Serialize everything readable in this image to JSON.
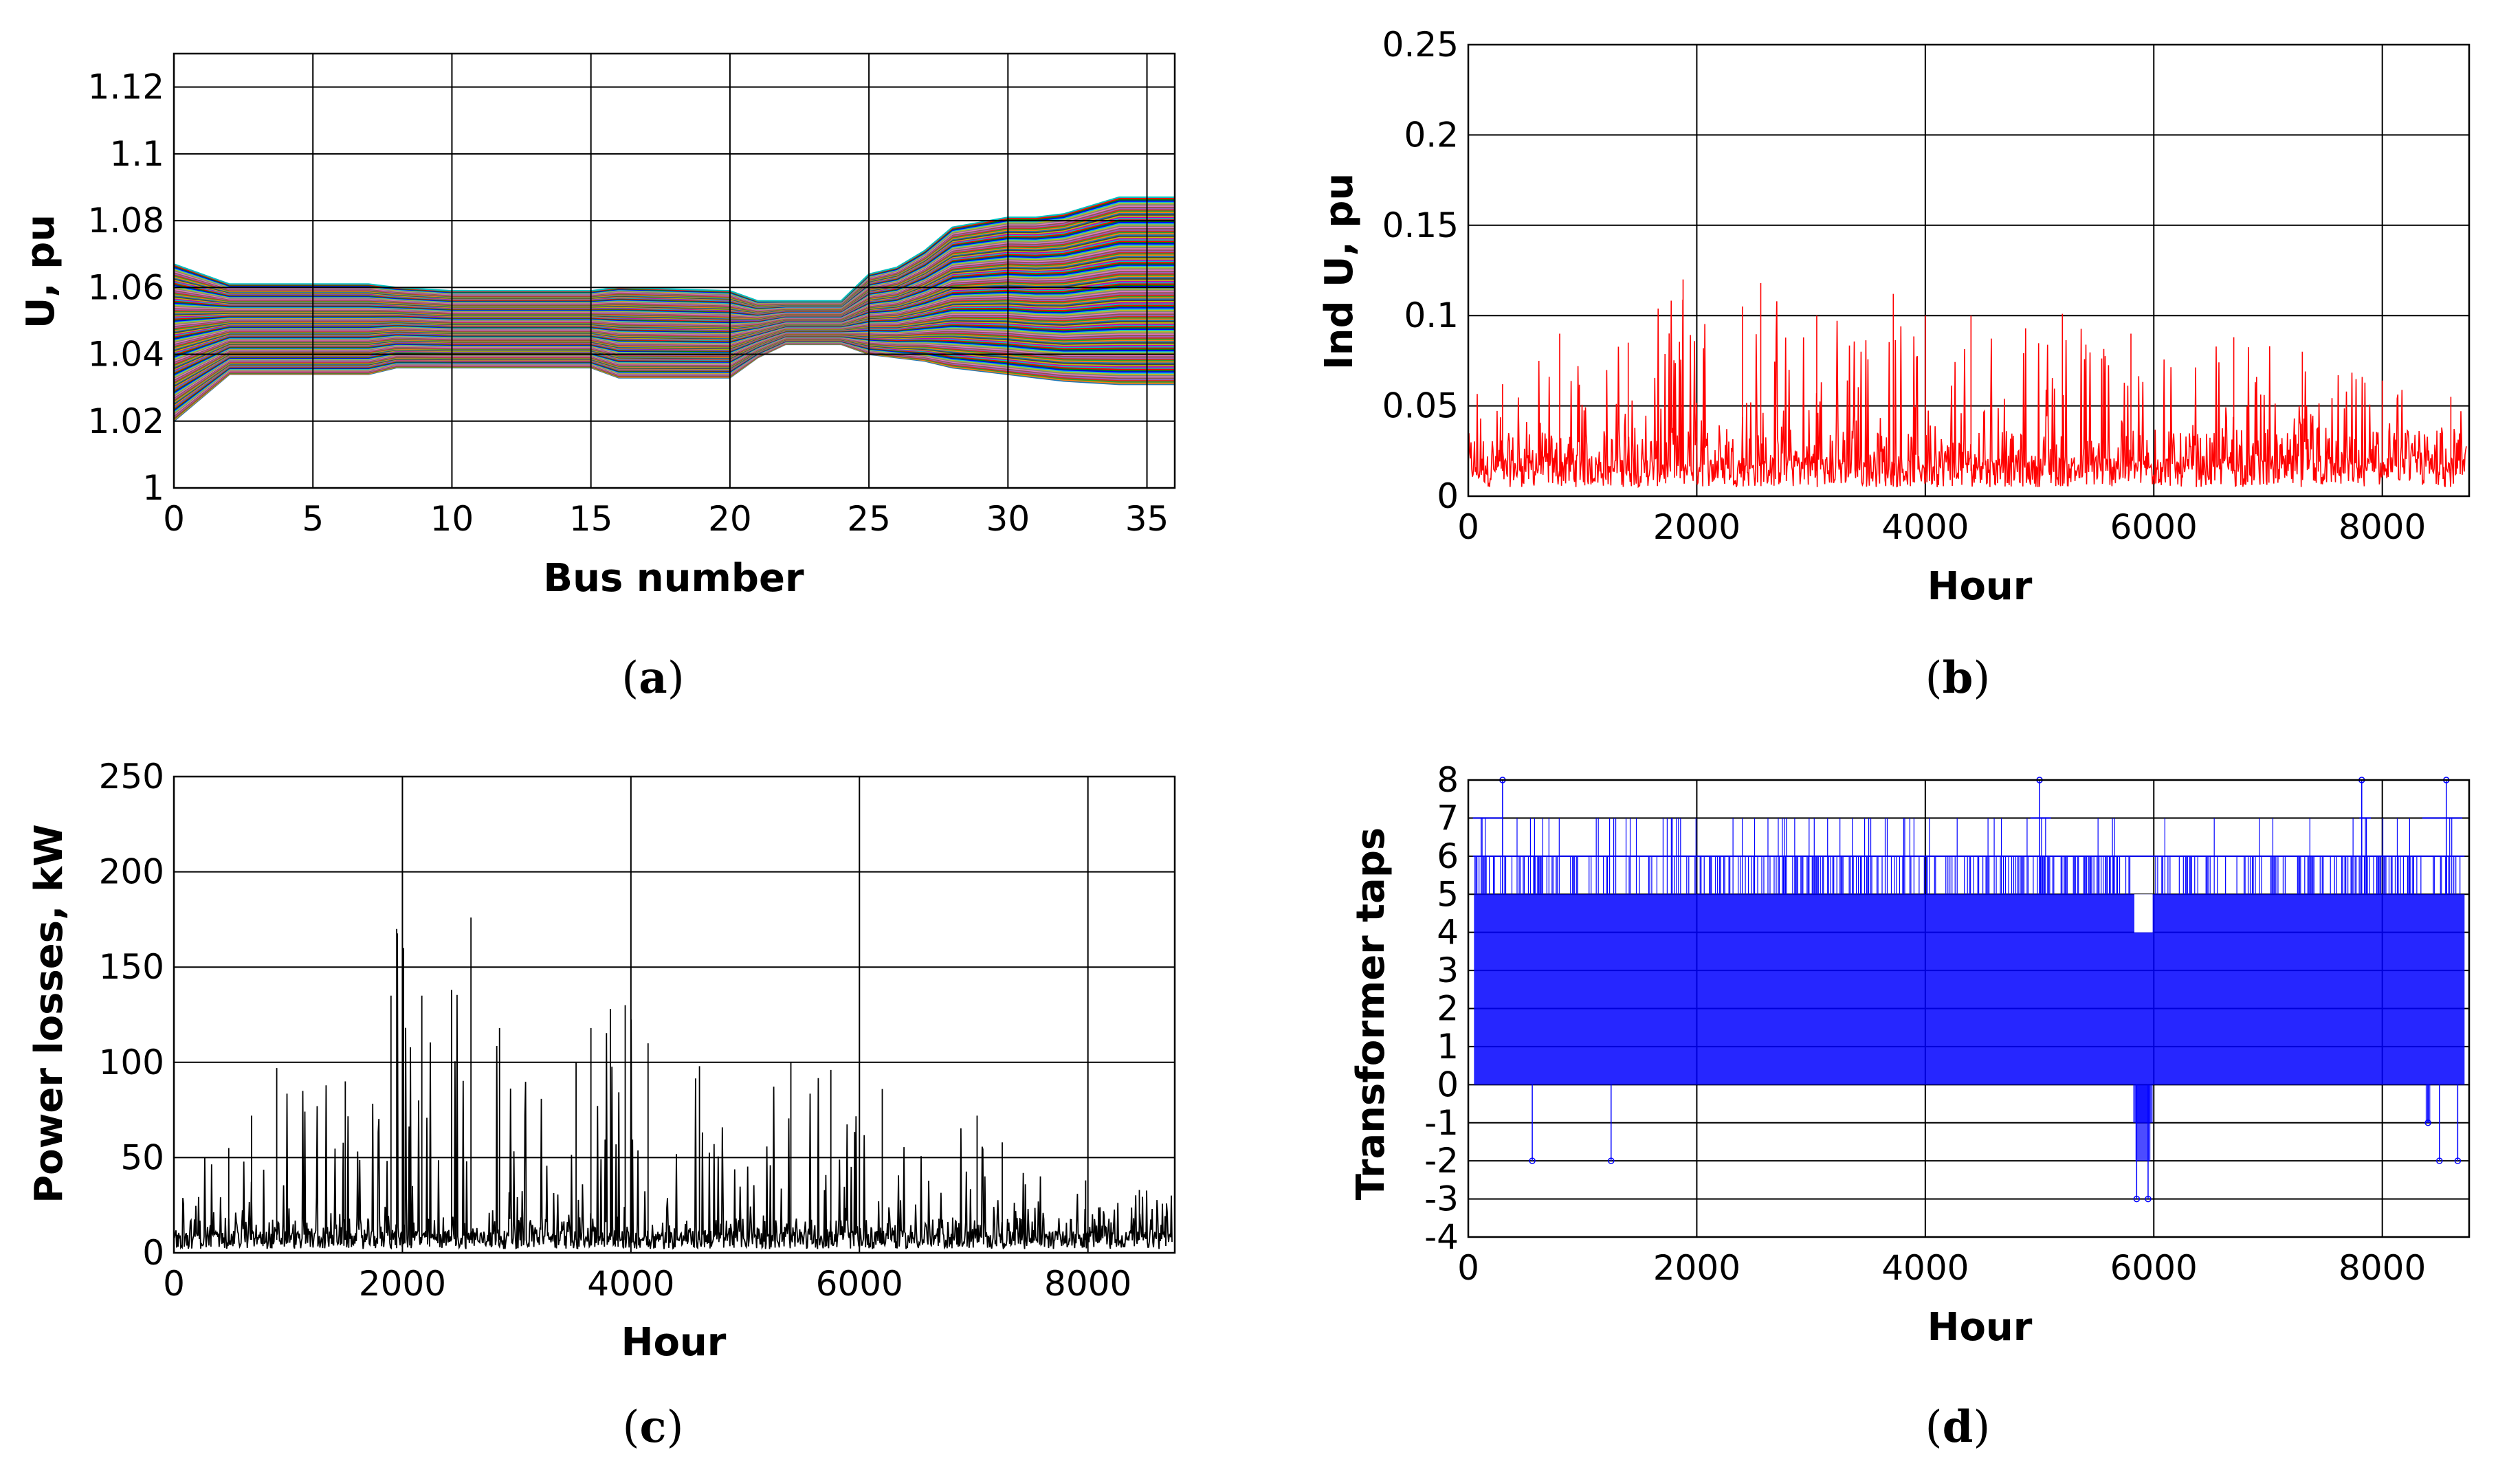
{
  "chart_data": [
    {
      "panel": "a",
      "caption_letter": "a",
      "type": "line",
      "title": "",
      "xlabel": "Bus number",
      "ylabel": "U, pu",
      "xlim": [
        0,
        36
      ],
      "ylim": [
        1.0,
        1.13
      ],
      "xticks": [
        0,
        5,
        10,
        15,
        20,
        25,
        30,
        35
      ],
      "xtick_labels": [
        "0",
        "5",
        "10",
        "15",
        "20",
        "25",
        "30",
        "35"
      ],
      "yticks": [
        1.0,
        1.02,
        1.04,
        1.06,
        1.08,
        1.1,
        1.12
      ],
      "ytick_labels": [
        "1",
        "1.02",
        "1.04",
        "1.06",
        "1.08",
        "1.1",
        "1.12"
      ],
      "grid": true,
      "series_note": "hourly voltage profiles (8760 curves) along buses 0-36",
      "envelope": {
        "x": [
          0,
          2,
          5,
          7,
          8,
          10,
          15,
          16,
          20,
          21,
          22,
          24,
          25,
          26,
          27,
          28,
          30,
          31,
          32,
          34,
          35,
          36
        ],
        "upper": [
          1.067,
          1.061,
          1.061,
          1.061,
          1.06,
          1.059,
          1.059,
          1.06,
          1.059,
          1.056,
          1.056,
          1.056,
          1.064,
          1.066,
          1.071,
          1.078,
          1.081,
          1.081,
          1.082,
          1.087,
          1.087,
          1.087
        ],
        "lower": [
          1.02,
          1.034,
          1.034,
          1.034,
          1.036,
          1.036,
          1.036,
          1.033,
          1.033,
          1.039,
          1.043,
          1.043,
          1.04,
          1.039,
          1.038,
          1.036,
          1.034,
          1.033,
          1.032,
          1.031,
          1.031,
          1.031
        ]
      }
    },
    {
      "panel": "b",
      "caption_letter": "b",
      "type": "line",
      "title": "",
      "xlabel": "Hour",
      "ylabel": "Ind U, pu",
      "xlim": [
        0,
        8760
      ],
      "ylim": [
        0,
        0.25
      ],
      "xticks": [
        0,
        2000,
        4000,
        6000,
        8000
      ],
      "xtick_labels": [
        "0",
        "2000",
        "4000",
        "6000",
        "8000"
      ],
      "yticks": [
        0,
        0.05,
        0.1,
        0.15,
        0.2,
        0.25
      ],
      "ytick_labels": [
        "0",
        "0.05",
        "0.1",
        "0.15",
        "0.2",
        "0.25"
      ],
      "grid": true,
      "color": "#ff0000",
      "peaks": [
        [
          300,
          0.062
        ],
        [
          800,
          0.09
        ],
        [
          1400,
          0.085
        ],
        [
          1880,
          0.12
        ],
        [
          2400,
          0.105
        ],
        [
          2560,
          0.118
        ],
        [
          3050,
          0.1
        ],
        [
          3720,
          0.112
        ],
        [
          4000,
          0.1
        ],
        [
          4400,
          0.1
        ],
        [
          5200,
          0.101
        ],
        [
          5800,
          0.09
        ],
        [
          6700,
          0.088
        ],
        [
          7300,
          0.08
        ],
        [
          8000,
          0.064
        ],
        [
          8600,
          0.055
        ]
      ],
      "baseline_range": [
        0.005,
        0.035
      ]
    },
    {
      "panel": "c",
      "caption_letter": "c",
      "type": "line",
      "title": "",
      "xlabel": "Hour",
      "ylabel": "Power losses, kW",
      "xlim": [
        0,
        8760
      ],
      "ylim": [
        0,
        250
      ],
      "xticks": [
        0,
        2000,
        4000,
        6000,
        8000
      ],
      "xtick_labels": [
        "0",
        "2000",
        "4000",
        "6000",
        "8000"
      ],
      "yticks": [
        0,
        50,
        100,
        150,
        200,
        250
      ],
      "ytick_labels": [
        "0",
        "50",
        "100",
        "150",
        "200",
        "250"
      ],
      "grid": true,
      "color": "#000000",
      "peaks": [
        [
          480,
          55
        ],
        [
          680,
          72
        ],
        [
          900,
          97
        ],
        [
          1500,
          90
        ],
        [
          1900,
          135
        ],
        [
          1950,
          170
        ],
        [
          2010,
          160
        ],
        [
          2170,
          135
        ],
        [
          2430,
          138
        ],
        [
          2600,
          176
        ],
        [
          2850,
          118
        ],
        [
          3520,
          100
        ],
        [
          3650,
          118
        ],
        [
          3820,
          128
        ],
        [
          3950,
          130
        ],
        [
          4150,
          110
        ],
        [
          4600,
          98
        ],
        [
          5400,
          100
        ],
        [
          5750,
          96
        ],
        [
          6200,
          86
        ],
        [
          7030,
          72
        ],
        [
          7250,
          58
        ],
        [
          7980,
          38
        ],
        [
          8450,
          33
        ]
      ],
      "baseline_range": [
        2,
        18
      ]
    },
    {
      "panel": "d",
      "caption_letter": "d",
      "type": "line",
      "title": "",
      "xlabel": "Hour",
      "ylabel": "Transformer taps",
      "xlim": [
        0,
        8760
      ],
      "ylim": [
        -4,
        8
      ],
      "xticks": [
        0,
        2000,
        4000,
        6000,
        8000
      ],
      "xtick_labels": [
        "0",
        "2000",
        "4000",
        "6000",
        "8000"
      ],
      "yticks": [
        -4,
        -3,
        -2,
        -1,
        0,
        1,
        2,
        3,
        4,
        5,
        6,
        7,
        8
      ],
      "ytick_labels": [
        "-4",
        "-3",
        "-2",
        "-1",
        "0",
        "1",
        "2",
        "3",
        "4",
        "5",
        "6",
        "7",
        "8"
      ],
      "grid": true,
      "color": "#0000ff",
      "dense_band": [
        0,
        5
      ],
      "notable_points": [
        [
          300,
          8
        ],
        [
          560,
          -2
        ],
        [
          1250,
          -2
        ],
        [
          5000,
          8
        ],
        [
          5850,
          -3
        ],
        [
          5950,
          -3
        ],
        [
          7820,
          8
        ],
        [
          8400,
          -1
        ],
        [
          8500,
          -2
        ],
        [
          8560,
          8
        ],
        [
          8660,
          -2
        ]
      ]
    }
  ]
}
